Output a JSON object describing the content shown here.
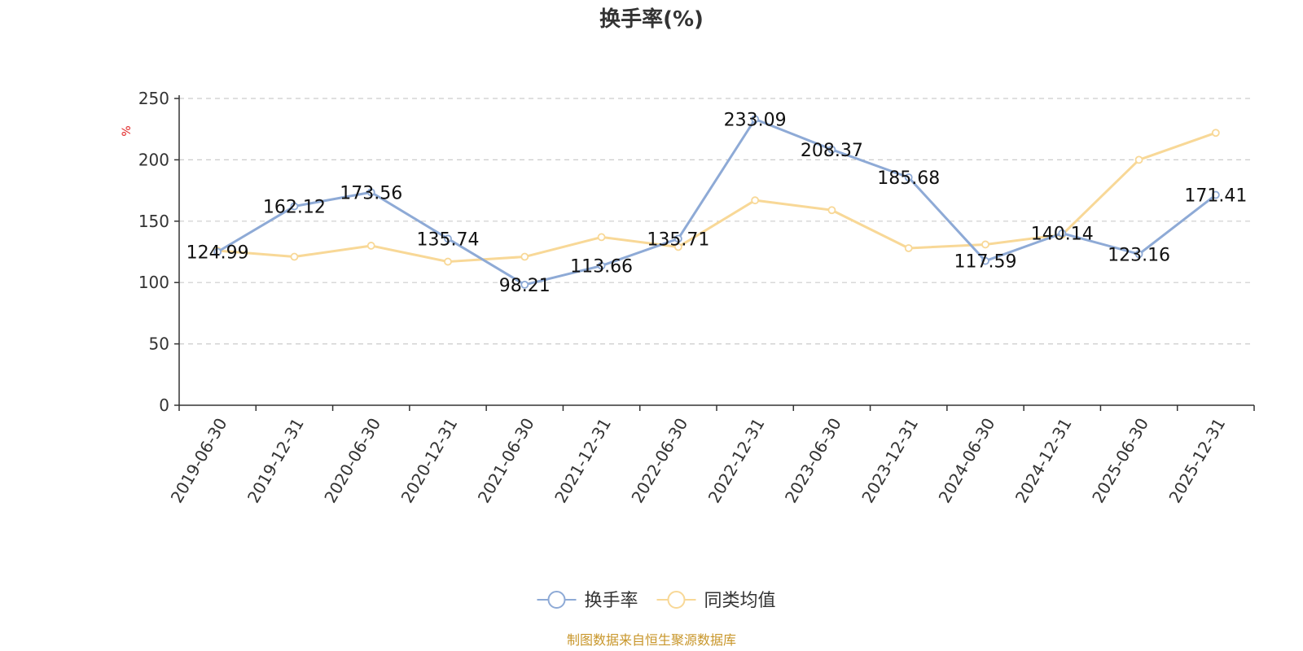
{
  "chart_data": {
    "type": "line",
    "title": "换手率(%)",
    "ylabel": "%",
    "ylim": [
      0,
      250
    ],
    "yticks": [
      0,
      50,
      100,
      150,
      200,
      250
    ],
    "grid": true,
    "legend_position": "bottom-center",
    "categories": [
      "2019-06-30",
      "2019-12-31",
      "2020-06-30",
      "2020-12-31",
      "2021-06-30",
      "2021-12-31",
      "2022-06-30",
      "2022-12-31",
      "2023-06-30",
      "2023-12-31",
      "2024-06-30",
      "2024-12-31",
      "2025-06-30",
      "2025-12-31"
    ],
    "series": [
      {
        "name": "换手率",
        "color": "#8eaad6",
        "show_labels": true,
        "values": [
          124.99,
          162.12,
          173.56,
          135.74,
          98.21,
          113.66,
          135.71,
          233.09,
          208.37,
          185.68,
          117.59,
          140.14,
          123.16,
          171.41
        ],
        "labels": [
          "124.99",
          "162.12",
          "173.56",
          "135.74",
          "98.21",
          "113.66",
          "135.71",
          "233.09",
          "208.37",
          "185.68",
          "117.59",
          "140.14",
          "123.16",
          "171.41"
        ]
      },
      {
        "name": "同类均值",
        "color": "#f8d897",
        "show_labels": false,
        "values": [
          126,
          121,
          130,
          117,
          121,
          137,
          129,
          167,
          159,
          128,
          131,
          139,
          200,
          222
        ]
      }
    ],
    "source": "制图数据来自恒生聚源数据库"
  }
}
